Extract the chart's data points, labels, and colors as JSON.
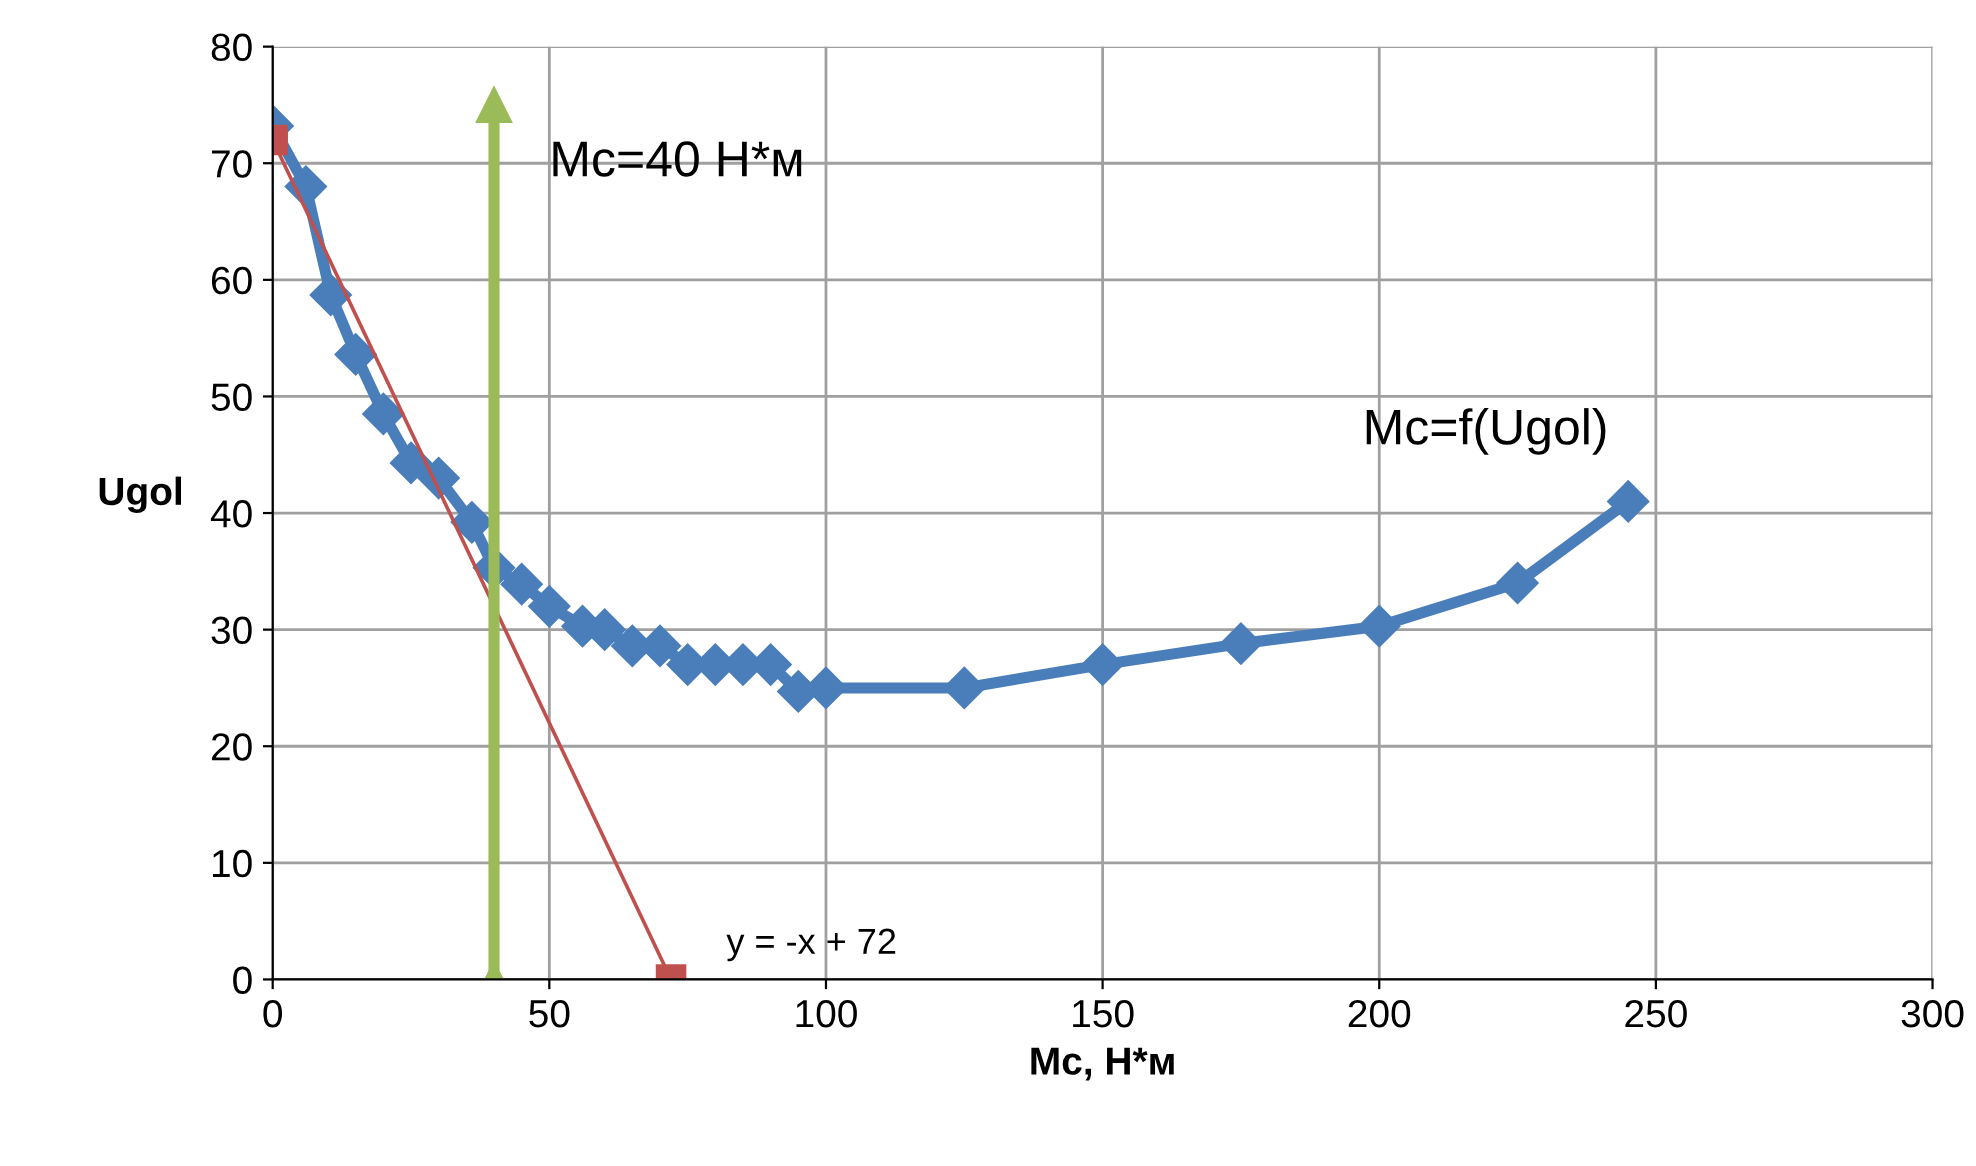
{
  "chart_data": {
    "type": "line",
    "xlabel": "Mc, Н*м",
    "ylabel": "Ugol",
    "xlim": [
      0,
      300
    ],
    "xticks": [
      0,
      50,
      100,
      150,
      200,
      250,
      300
    ],
    "ylim": [
      0,
      80
    ],
    "yticks": [
      0,
      10,
      20,
      30,
      40,
      50,
      60,
      70,
      80
    ],
    "grid": true,
    "legend": false,
    "series": [
      {
        "name": "Mc=f(Ugol)",
        "color": "#4a7ebb",
        "marker": "diamond",
        "x": [
          0,
          6,
          10.5,
          15,
          20,
          25,
          30,
          36,
          40,
          45,
          50,
          56,
          60,
          65,
          70,
          75,
          80,
          85,
          90,
          95,
          100,
          125,
          150,
          175,
          200,
          225,
          245
        ],
        "values": [
          73.2,
          68,
          58.7,
          53.6,
          48.5,
          44.3,
          43,
          39.2,
          35.3,
          33.9,
          32,
          30.3,
          30,
          28.6,
          28.6,
          27,
          27,
          27,
          27,
          24.7,
          25,
          25,
          27,
          28.8,
          30.3,
          34,
          41
        ]
      },
      {
        "name": "y = -x + 72",
        "color": "#c0504d",
        "marker": "square",
        "x": [
          0,
          72
        ],
        "values": [
          72,
          0
        ]
      },
      {
        "name": "Mc=40 Н*м",
        "color": "#9bbb59",
        "marker": "triangle",
        "x": [
          40,
          40
        ],
        "values": [
          0,
          75
        ]
      }
    ]
  }
}
